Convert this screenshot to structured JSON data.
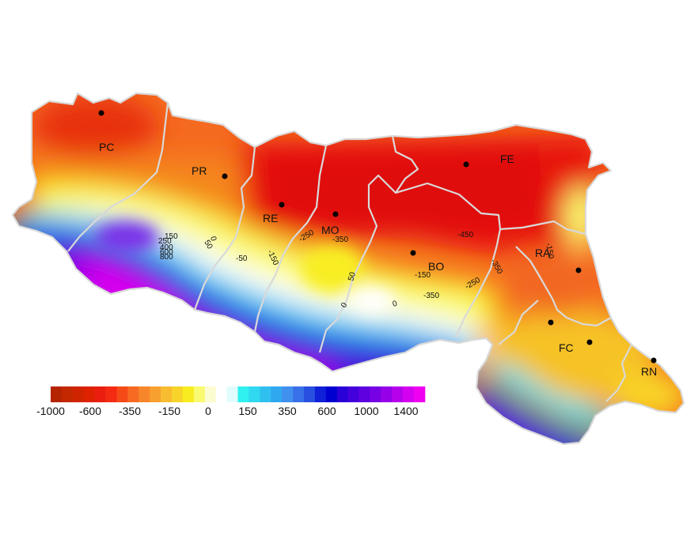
{
  "cities": [
    {
      "code": "PC"
    },
    {
      "code": "PR"
    },
    {
      "code": "RE"
    },
    {
      "code": "MO"
    },
    {
      "code": "BO"
    },
    {
      "code": "FE"
    },
    {
      "code": "RA"
    },
    {
      "code": "FC"
    },
    {
      "code": "RN"
    }
  ],
  "contour_labels": [
    "150",
    "250",
    "400",
    "600",
    "800",
    "0",
    "50",
    "-50",
    "-150",
    "-250",
    "-350",
    "-450",
    "-150",
    "-250",
    "-350",
    "50",
    "0",
    "0",
    "-350",
    "-150"
  ],
  "legend": {
    "colors": [
      "#b42400",
      "#c32800",
      "#d02400",
      "#de2200",
      "#ea1e0e",
      "#f42a12",
      "#f54a18",
      "#f66a22",
      "#f7862a",
      "#f7a030",
      "#f8bc30",
      "#f8d42a",
      "#f8ec20",
      "#fafa70",
      "#fcfcd0",
      "#ffffff",
      "#e0fcfc",
      "#30f0f0",
      "#30d8f0",
      "#30c0f0",
      "#30a8f0",
      "#4090f0",
      "#3870e8",
      "#2850e0",
      "#1020d8",
      "#0000d0",
      "#2a00d8",
      "#4400dc",
      "#5e00e0",
      "#7800e4",
      "#9600e8",
      "#b600ec",
      "#d400f0",
      "#f000f0"
    ],
    "labels": [
      "-1000",
      "-600",
      "-350",
      "-150",
      "0",
      "150",
      "350",
      "600",
      "1000",
      "1400"
    ]
  }
}
